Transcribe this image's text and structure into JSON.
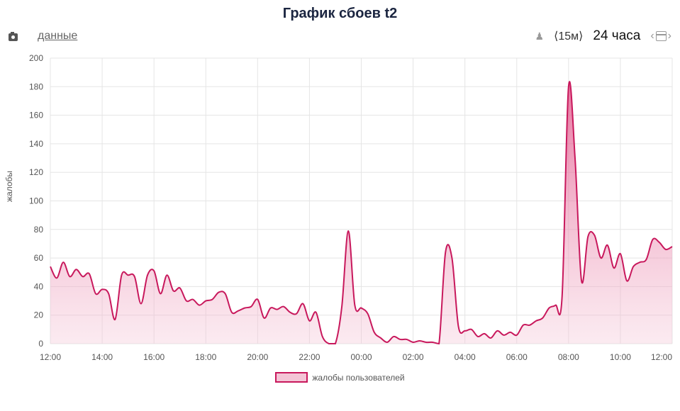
{
  "header": {
    "title": "График сбоев t2",
    "data_link": "данные"
  },
  "controls": {
    "interval": "⟨15м⟩",
    "range": "24 часа",
    "camera_icon": "camera-icon",
    "person_icon": "person-icon",
    "calendar_icon": "calendar-icon"
  },
  "colors": {
    "line": "#c8185c",
    "fill": "#f4c4d6",
    "grid": "#e5e5e5"
  },
  "chart_data": {
    "type": "area",
    "title": "График сбоев t2",
    "xlabel": "",
    "ylabel": "жалобы",
    "ylim": [
      0,
      200
    ],
    "yticks": [
      0,
      20,
      40,
      60,
      80,
      100,
      120,
      140,
      160,
      180,
      200
    ],
    "x_ticks": [
      "12:00",
      "14:00",
      "16:00",
      "18:00",
      "20:00",
      "22:00",
      "00:00",
      "02:00",
      "04:00",
      "06:00",
      "08:00",
      "10:00",
      "12:00"
    ],
    "grid": true,
    "legend": "bottom",
    "series": [
      {
        "name": "жалобы пользователей",
        "hours": [
          0,
          0.25,
          0.5,
          0.75,
          1,
          1.25,
          1.5,
          1.75,
          2,
          2.25,
          2.5,
          2.75,
          3,
          3.25,
          3.5,
          3.75,
          4,
          4.25,
          4.5,
          4.75,
          5,
          5.25,
          5.5,
          5.75,
          6,
          6.25,
          6.5,
          6.75,
          7,
          7.25,
          7.5,
          7.75,
          8,
          8.25,
          8.5,
          8.75,
          9,
          9.25,
          9.5,
          9.75,
          10,
          10.25,
          10.5,
          10.75,
          11,
          11.25,
          11.5,
          11.75,
          12,
          12.25,
          12.5,
          12.75,
          13,
          13.25,
          13.5,
          13.75,
          14,
          14.25,
          14.5,
          14.75,
          15,
          15.25,
          15.5,
          15.75,
          16,
          16.25,
          16.5,
          16.75,
          17,
          17.25,
          17.5,
          17.75,
          18,
          18.25,
          18.5,
          18.75,
          19,
          19.25,
          19.5,
          19.75,
          20,
          20.25,
          20.5,
          20.75,
          21,
          21.25,
          21.5,
          21.75,
          22,
          22.25,
          22.5,
          22.75,
          23,
          23.25,
          23.5,
          23.75,
          24
        ],
        "values": [
          54,
          46,
          57,
          47,
          52,
          47,
          49,
          35,
          38,
          35,
          17,
          48,
          48,
          47,
          28,
          48,
          51,
          35,
          48,
          37,
          39,
          30,
          31,
          27,
          30,
          31,
          36,
          35,
          22,
          23,
          25,
          26,
          31,
          18,
          25,
          24,
          26,
          22,
          21,
          28,
          16,
          22,
          5,
          0,
          0,
          26,
          79,
          27,
          25,
          21,
          8,
          4,
          1,
          5,
          3,
          3,
          1,
          2,
          1,
          1,
          0,
          64,
          60,
          12,
          9,
          10,
          5,
          7,
          4,
          9,
          6,
          8,
          6,
          13,
          13,
          16,
          18,
          25,
          27,
          33,
          180,
          130,
          44,
          75,
          76,
          60,
          69,
          53,
          63,
          44,
          54,
          57,
          59,
          73,
          71,
          66,
          68
        ]
      }
    ]
  }
}
